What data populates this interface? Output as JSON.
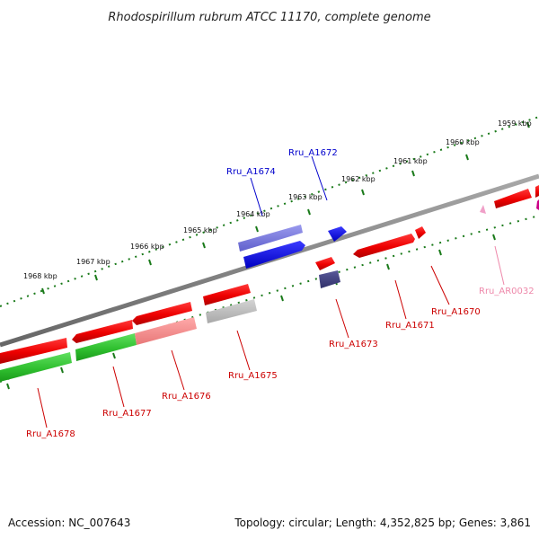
{
  "title": "Rhodospirillum rubrum ATCC 11170, complete genome",
  "footer": {
    "accession": "Accession: NC_007643",
    "summary": "Topology: circular; Length: 4,352,825 bp; Genes: 3,861"
  },
  "ticks": [
    "1959 kbp",
    "1960 kbp",
    "1961 kbp",
    "1962 kbp",
    "1963 kbp",
    "1964 kbp",
    "1965 kbp",
    "1966 kbp",
    "1967 kbp",
    "1968 kbp"
  ],
  "genes": [
    {
      "name": "Rru_A1678",
      "color": "#cc0000"
    },
    {
      "name": "Rru_A1677",
      "color": "#cc0000"
    },
    {
      "name": "Rru_A1676",
      "color": "#cc0000"
    },
    {
      "name": "Rru_A1675",
      "color": "#cc0000"
    },
    {
      "name": "Rru_A1674",
      "color": "#0000cc"
    },
    {
      "name": "Rru_A1673",
      "color": "#cc0000"
    },
    {
      "name": "Rru_A1672",
      "color": "#0000cc"
    },
    {
      "name": "Rru_A1671",
      "color": "#cc0000"
    },
    {
      "name": "Rru_A1670",
      "color": "#cc0000"
    },
    {
      "name": "Rru_AR0032",
      "color": "#ee88aa"
    }
  ]
}
